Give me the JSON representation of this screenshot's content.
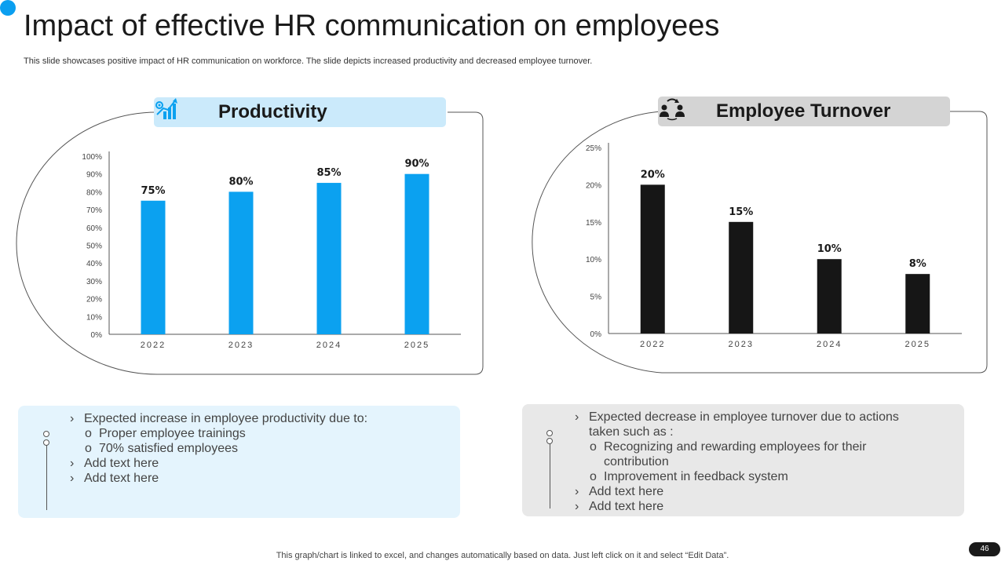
{
  "slide": {
    "title": "Impact of effective HR communication on employees",
    "subtitle": "This slide showcases positive impact of HR communication on workforce. The slide depicts increased productivity and decreased employee turnover.",
    "footnote": "This graph/chart is linked to excel,  and changes automatically based on data. Just left click on it and select “Edit Data”.",
    "page_number": "46"
  },
  "colors": {
    "accent": "#0ba1f0",
    "dark": "#1a1a1a",
    "light_blue": "#cbeafb",
    "light_gray": "#d4d4d4",
    "box_blue": "#e4f4fd",
    "box_gray": "#e8e8e8"
  },
  "left_panel": {
    "header": "Productivity",
    "icon": "growth-chart-icon"
  },
  "right_panel": {
    "header": "Employee Turnover",
    "icon": "team-exchange-icon"
  },
  "chart_data": [
    {
      "type": "bar",
      "title": "Productivity",
      "categories": [
        "2022",
        "2023",
        "2024",
        "2025"
      ],
      "values": [
        75,
        80,
        85,
        90
      ],
      "value_labels": [
        "75%",
        "80%",
        "85%",
        "90%"
      ],
      "ylim": [
        0,
        100
      ],
      "yticks": [
        "0%",
        "10%",
        "20%",
        "30%",
        "40%",
        "50%",
        "60%",
        "70%",
        "80%",
        "90%",
        "100%"
      ],
      "color": "#0ba1f0"
    },
    {
      "type": "bar",
      "title": "Employee Turnover",
      "categories": [
        "2022",
        "2023",
        "2024",
        "2025"
      ],
      "values": [
        20,
        15,
        10,
        8
      ],
      "value_labels": [
        "20%",
        "15%",
        "10%",
        "8%"
      ],
      "ylim": [
        0,
        25
      ],
      "yticks": [
        "0%",
        "5%",
        "10%",
        "15%",
        "20%",
        "25%"
      ],
      "color": "#161616"
    }
  ],
  "left_text": [
    {
      "marker": "›",
      "text": "Expected increase in employee productivity due to:",
      "level": 0
    },
    {
      "marker": "o",
      "text": "Proper employee trainings",
      "level": 1
    },
    {
      "marker": "o",
      "text": "70% satisfied employees",
      "level": 1
    },
    {
      "marker": "›",
      "text": "Add text here",
      "level": 0
    },
    {
      "marker": "›",
      "text": "Add text here",
      "level": 0
    }
  ],
  "right_text": [
    {
      "marker": "›",
      "text": "Expected decrease in employee turnover  due to actions",
      "level": 0
    },
    {
      "marker": "",
      "text": "taken such as :",
      "level": 0
    },
    {
      "marker": "o",
      "text": "Recognizing and rewarding employees for their",
      "level": 1
    },
    {
      "marker": "",
      "text": "contribution",
      "level": 1
    },
    {
      "marker": "o",
      "text": "Improvement  in feedback system",
      "level": 1
    },
    {
      "marker": "›",
      "text": "Add text here",
      "level": 0
    },
    {
      "marker": "›",
      "text": "Add text here",
      "level": 0
    }
  ]
}
